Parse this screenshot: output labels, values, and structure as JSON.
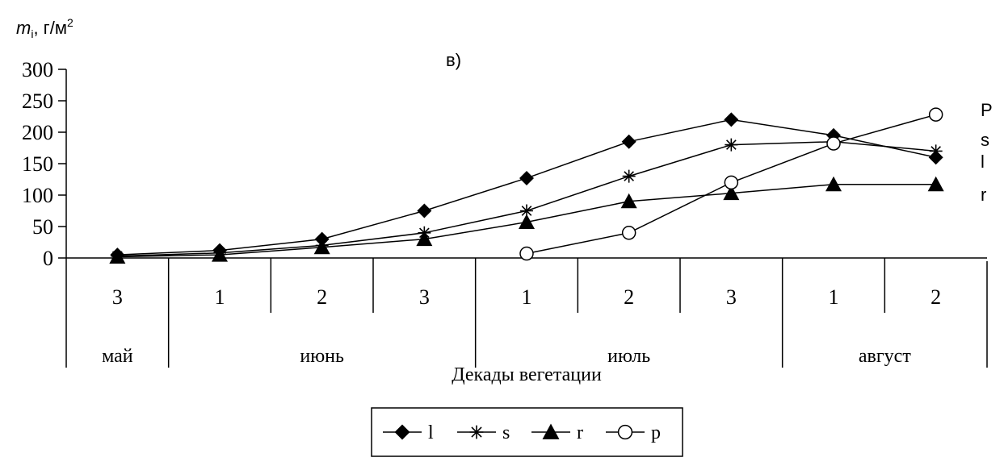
{
  "chart_data": {
    "type": "line",
    "ylabel": {
      "var": "m",
      "sub": "i",
      "unit": ", г/м",
      "sup": "2"
    },
    "panel_label": "в)",
    "ylim": [
      0,
      300
    ],
    "yticks": [
      0,
      50,
      100,
      150,
      200,
      250,
      300
    ],
    "categories": [
      "3",
      "1",
      "2",
      "3",
      "1",
      "2",
      "3",
      "1",
      "2"
    ],
    "months": [
      {
        "label": "май",
        "span": 1
      },
      {
        "label": "июнь",
        "span": 3
      },
      {
        "label": "июль",
        "span": 3
      },
      {
        "label": "август",
        "span": 2
      }
    ],
    "xlabel": "Декады вегетации",
    "series": [
      {
        "name": "l",
        "marker": "diamond",
        "values": [
          5,
          12,
          30,
          75,
          127,
          185,
          220,
          195,
          160
        ]
      },
      {
        "name": "s",
        "marker": "star",
        "values": [
          3,
          8,
          20,
          40,
          75,
          130,
          180,
          185,
          170
        ]
      },
      {
        "name": "r",
        "marker": "triangle",
        "values": [
          2,
          5,
          17,
          30,
          57,
          90,
          103,
          117,
          117
        ]
      },
      {
        "name": "p",
        "marker": "circle",
        "values": [
          null,
          null,
          null,
          null,
          7,
          40,
          120,
          182,
          228
        ]
      }
    ],
    "right_labels": [
      "P",
      "s",
      "l",
      "r"
    ],
    "grid": false,
    "legend": "bottom-center"
  }
}
